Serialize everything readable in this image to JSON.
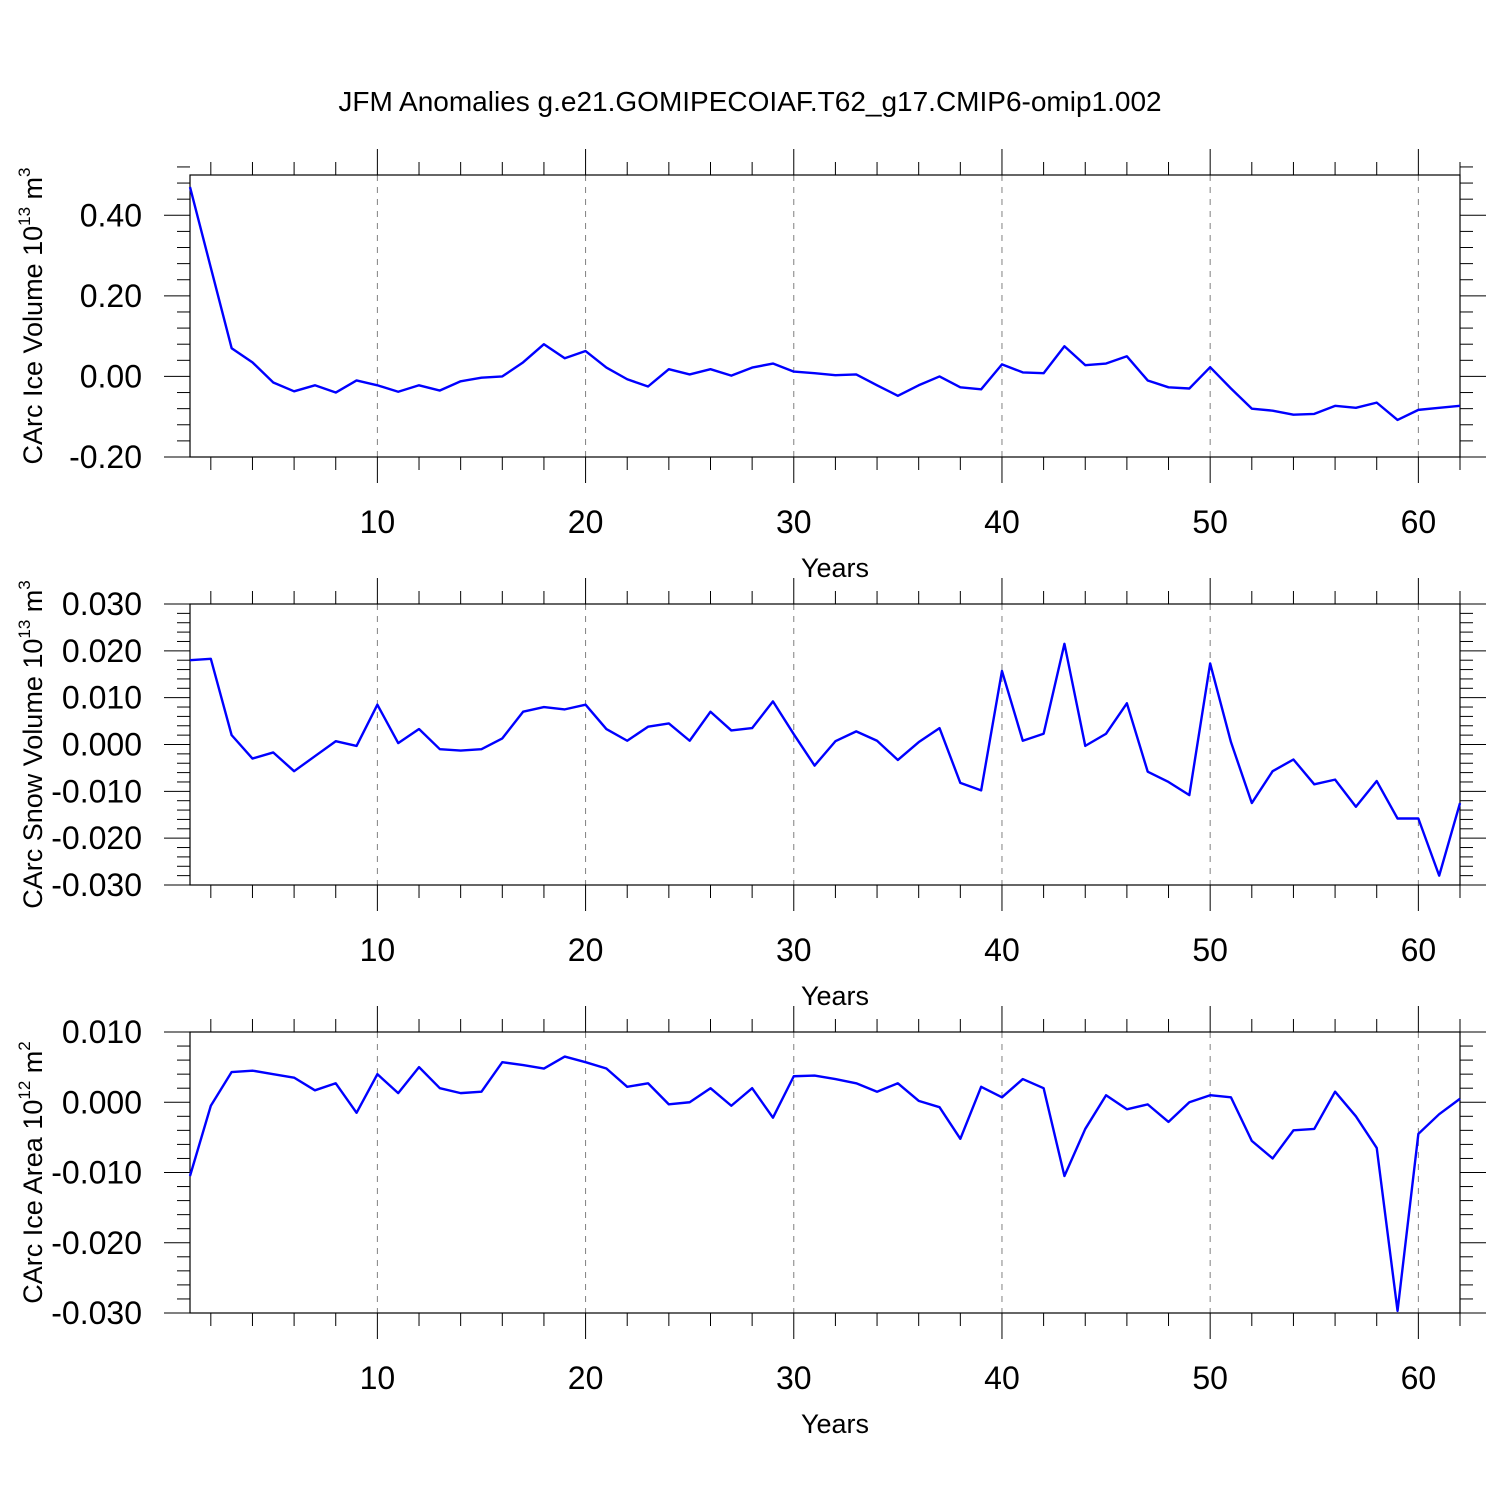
{
  "title": "JFM Anomalies g.e21.GOMIPECOIAF.T62_g17.CMIP6-omip1.002",
  "colors": {
    "line": "#0000ff",
    "axis": "#000000",
    "grid": "#808080",
    "background": "#ffffff"
  },
  "chart_data": [
    {
      "type": "line",
      "name": "ice-volume",
      "ylabel": {
        "main": "CArc Ice Volume 10",
        "sup": "13",
        "unit": " m",
        "unit_sup": "3"
      },
      "xlabel": "Years",
      "xlim": [
        1,
        62
      ],
      "ylim": [
        -0.2,
        0.5
      ],
      "x_ticks": [
        10,
        20,
        30,
        40,
        50,
        60
      ],
      "x_minor": 2,
      "y_ticks": [
        -0.2,
        0.0,
        0.2,
        0.4
      ],
      "y_tick_labels": [
        "-0.20",
        "0.00",
        "0.20",
        "0.40"
      ],
      "y_minor": 0.04,
      "grid": "vertical-dashed",
      "series": [
        {
          "name": "CArc Ice Volume",
          "x_start": 1,
          "values": [
            0.47,
            0.27,
            0.07,
            0.035,
            -0.015,
            -0.037,
            -0.022,
            -0.04,
            -0.01,
            -0.022,
            -0.038,
            -0.022,
            -0.035,
            -0.012,
            -0.003,
            0.0,
            0.035,
            0.08,
            0.045,
            0.063,
            0.022,
            -0.007,
            -0.025,
            0.018,
            0.005,
            0.018,
            0.002,
            0.022,
            0.032,
            0.012,
            0.008,
            0.003,
            0.005,
            -0.022,
            -0.048,
            -0.022,
            0.0,
            -0.027,
            -0.032,
            0.03,
            0.01,
            0.008,
            0.075,
            0.028,
            0.032,
            0.05,
            -0.01,
            -0.027,
            -0.03,
            0.023,
            -0.03,
            -0.08,
            -0.085,
            -0.095,
            -0.093,
            -0.073,
            -0.078,
            -0.065,
            -0.108,
            -0.083,
            -0.078,
            -0.073
          ]
        }
      ]
    },
    {
      "type": "line",
      "name": "snow-volume",
      "ylabel": {
        "main": "CArc Snow Volume 10",
        "sup": "13",
        "unit": " m",
        "unit_sup": "3"
      },
      "xlabel": "Years",
      "xlim": [
        1,
        62
      ],
      "ylim": [
        -0.03,
        0.03
      ],
      "x_ticks": [
        10,
        20,
        30,
        40,
        50,
        60
      ],
      "x_minor": 2,
      "y_ticks": [
        -0.03,
        -0.02,
        -0.01,
        0.0,
        0.01,
        0.02,
        0.03
      ],
      "y_tick_labels": [
        "-0.030",
        "-0.020",
        "-0.010",
        "0.000",
        "0.010",
        "0.020",
        "0.030"
      ],
      "y_minor": 0.002,
      "grid": "vertical-dashed",
      "series": [
        {
          "name": "CArc Snow Volume",
          "x_start": 1,
          "values": [
            0.018,
            0.0183,
            0.002,
            -0.003,
            -0.0017,
            -0.0057,
            -0.0025,
            0.0007,
            -0.0003,
            0.0085,
            0.0003,
            0.0033,
            -0.001,
            -0.0013,
            -0.001,
            0.0013,
            0.007,
            0.008,
            0.0075,
            0.0085,
            0.0033,
            0.0008,
            0.0038,
            0.0045,
            0.0008,
            0.007,
            0.003,
            0.0035,
            0.0092,
            0.0022,
            -0.0045,
            0.0007,
            0.0028,
            0.0008,
            -0.0033,
            0.0005,
            0.0035,
            -0.0082,
            -0.0098,
            0.0157,
            0.0008,
            0.0023,
            0.0215,
            -0.0003,
            0.0023,
            0.0088,
            -0.0058,
            -0.008,
            -0.0108,
            0.0173,
            0.0005,
            -0.0125,
            -0.0057,
            -0.0032,
            -0.0085,
            -0.0075,
            -0.0133,
            -0.0078,
            -0.0158,
            -0.0158,
            -0.028,
            -0.0125
          ]
        }
      ]
    },
    {
      "type": "line",
      "name": "ice-area",
      "ylabel": {
        "main": "CArc Ice Area 10",
        "sup": "12",
        "unit": " m",
        "unit_sup": "2"
      },
      "xlabel": "Years",
      "xlim": [
        1,
        62
      ],
      "ylim": [
        -0.03,
        0.01
      ],
      "x_ticks": [
        10,
        20,
        30,
        40,
        50,
        60
      ],
      "x_minor": 2,
      "y_ticks": [
        -0.03,
        -0.02,
        -0.01,
        0.0,
        0.01
      ],
      "y_tick_labels": [
        "-0.030",
        "-0.020",
        "-0.010",
        "0.000",
        "0.010"
      ],
      "y_minor": 0.002,
      "grid": "vertical-dashed",
      "series": [
        {
          "name": "CArc Ice Area",
          "x_start": 1,
          "values": [
            -0.0105,
            -0.0005,
            0.0043,
            0.0045,
            0.004,
            0.0035,
            0.0017,
            0.0027,
            -0.0015,
            0.004,
            0.0013,
            0.005,
            0.002,
            0.0013,
            0.0015,
            0.0057,
            0.0053,
            0.0048,
            0.0065,
            0.0057,
            0.0048,
            0.0022,
            0.0027,
            -0.0003,
            0.0,
            0.002,
            -0.0005,
            0.002,
            -0.0022,
            0.0037,
            0.0038,
            0.0033,
            0.0027,
            0.0015,
            0.0027,
            0.0002,
            -0.0007,
            -0.0052,
            0.0022,
            0.0007,
            0.0033,
            0.002,
            -0.0105,
            -0.0038,
            0.001,
            -0.001,
            -0.0003,
            -0.0028,
            0.0,
            0.001,
            0.0007,
            -0.0055,
            -0.008,
            -0.004,
            -0.0038,
            0.0015,
            -0.002,
            -0.0065,
            -0.0297,
            -0.0045,
            -0.0017,
            0.0005
          ]
        }
      ]
    }
  ]
}
